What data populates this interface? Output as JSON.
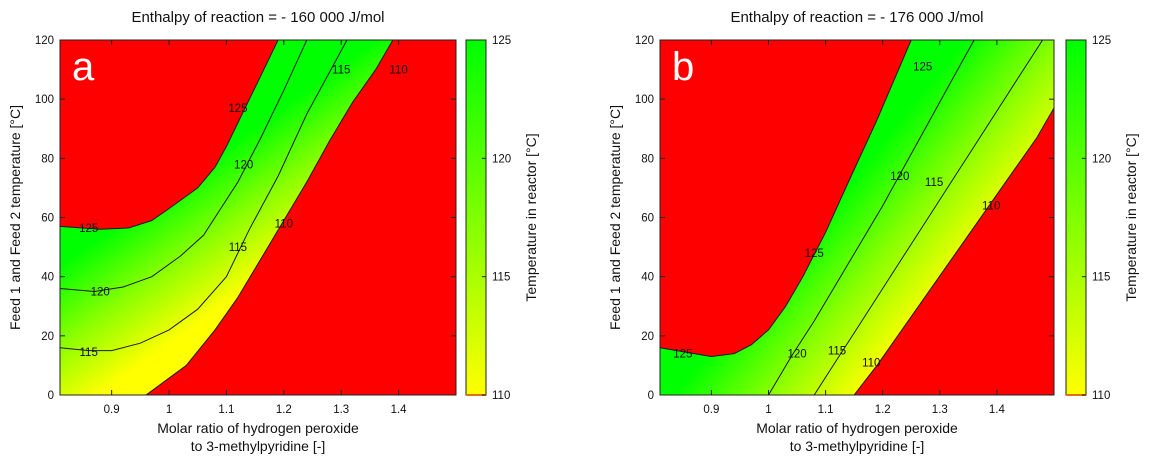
{
  "chart_data": [
    {
      "type": "heatmap",
      "panel_letter": "a",
      "title": "Enthalpy of reaction = - 160 000 J/mol",
      "xlabel_lines": [
        "Molar ratio of hydrogen peroxide",
        "to 3-methylpyridine [-]"
      ],
      "ylabel": "Feed 1 and Feed 2 temperature [°C]",
      "xlim": [
        0.81,
        1.5
      ],
      "ylim": [
        0,
        120
      ],
      "x_ticks": [
        0.9,
        1,
        1.1,
        1.2,
        1.3,
        1.4
      ],
      "x_tick_labels": [
        "0.9",
        "1",
        "1.1",
        "1.2",
        "1.3",
        "1.4"
      ],
      "y_ticks": [
        0,
        20,
        40,
        60,
        80,
        100,
        120
      ],
      "y_tick_labels": [
        "0",
        "20",
        "40",
        "60",
        "80",
        "100",
        "120"
      ],
      "colorbar": {
        "label": "Temperature in reactor [°C]",
        "range": [
          110,
          125
        ],
        "ticks": [
          110,
          115,
          120,
          125
        ],
        "tick_labels": [
          "110",
          "115",
          "120",
          "125"
        ],
        "colors": [
          "#ffff00",
          "#00ff00"
        ],
        "out_of_range_color": "#ff0000"
      },
      "contours": [
        {
          "level": 125,
          "label": "125",
          "points": [
            [
              0.81,
              57
            ],
            [
              0.88,
              56
            ],
            [
              0.93,
              56.5
            ],
            [
              0.97,
              59
            ],
            [
              1.0,
              63
            ],
            [
              1.05,
              70
            ],
            [
              1.08,
              77
            ],
            [
              1.1,
              84
            ],
            [
              1.14,
              100
            ],
            [
              1.19,
              120
            ]
          ],
          "label_points": [
            [
              0.86,
              56.5
            ],
            [
              1.12,
              97
            ]
          ]
        },
        {
          "level": 120,
          "label": "120",
          "points": [
            [
              0.81,
              36
            ],
            [
              0.87,
              35
            ],
            [
              0.92,
              36.5
            ],
            [
              0.97,
              40
            ],
            [
              1.02,
              47
            ],
            [
              1.06,
              54
            ],
            [
              1.09,
              63
            ],
            [
              1.12,
              72
            ],
            [
              1.16,
              87
            ],
            [
              1.2,
              103
            ],
            [
              1.24,
              120
            ]
          ],
          "label_points": [
            [
              0.88,
              35
            ],
            [
              1.13,
              78
            ]
          ]
        },
        {
          "level": 115,
          "label": "115",
          "points": [
            [
              0.81,
              16
            ],
            [
              0.86,
              15
            ],
            [
              0.9,
              15
            ],
            [
              0.95,
              17.5
            ],
            [
              1.0,
              22
            ],
            [
              1.05,
              29
            ],
            [
              1.1,
              40
            ],
            [
              1.14,
              56
            ],
            [
              1.19,
              74
            ],
            [
              1.24,
              95
            ],
            [
              1.31,
              120
            ]
          ],
          "label_points": [
            [
              0.86,
              14.5
            ],
            [
              1.12,
              50
            ],
            [
              1.3,
              110
            ]
          ]
        },
        {
          "level": 110,
          "label": "110",
          "points": [
            [
              0.96,
              0
            ],
            [
              1.03,
              10
            ],
            [
              1.08,
              22
            ],
            [
              1.12,
              33
            ],
            [
              1.16,
              46
            ],
            [
              1.2,
              59
            ],
            [
              1.24,
              72
            ],
            [
              1.28,
              86
            ],
            [
              1.32,
              99
            ],
            [
              1.36,
              110
            ],
            [
              1.39,
              120
            ]
          ],
          "label_points": [
            [
              1.2,
              58
            ],
            [
              1.4,
              110
            ]
          ]
        }
      ],
      "boundaries": {
        "upper": [
          [
            0.81,
            57
          ],
          [
            0.88,
            56
          ],
          [
            0.93,
            56.5
          ],
          [
            0.97,
            59
          ],
          [
            1.0,
            63
          ],
          [
            1.05,
            70
          ],
          [
            1.08,
            77
          ],
          [
            1.1,
            84
          ],
          [
            1.14,
            100
          ],
          [
            1.19,
            120
          ]
        ],
        "lower": [
          [
            0.96,
            0
          ],
          [
            1.03,
            10
          ],
          [
            1.08,
            22
          ],
          [
            1.12,
            33
          ],
          [
            1.16,
            46
          ],
          [
            1.2,
            59
          ],
          [
            1.24,
            72
          ],
          [
            1.28,
            86
          ],
          [
            1.32,
            99
          ],
          [
            1.36,
            110
          ],
          [
            1.39,
            120
          ]
        ]
      }
    },
    {
      "type": "heatmap",
      "panel_letter": "b",
      "title": "Enthalpy of reaction = - 176 000 J/mol",
      "xlabel_lines": [
        "Molar ratio of hydrogen peroxide",
        "to 3-methylpyridine [-]"
      ],
      "ylabel": "Feed 1 and Feed 2 temperature [°C]",
      "xlim": [
        0.81,
        1.5
      ],
      "ylim": [
        0,
        120
      ],
      "x_ticks": [
        0.9,
        1,
        1.1,
        1.2,
        1.3,
        1.4
      ],
      "x_tick_labels": [
        "0.9",
        "1",
        "1.1",
        "1.2",
        "1.3",
        "1.4"
      ],
      "y_ticks": [
        0,
        20,
        40,
        60,
        80,
        100,
        120
      ],
      "y_tick_labels": [
        "0",
        "20",
        "40",
        "60",
        "80",
        "100",
        "120"
      ],
      "colorbar": {
        "label": "Temperature in reactor [°C]",
        "range": [
          110,
          125
        ],
        "ticks": [
          110,
          115,
          120,
          125
        ],
        "tick_labels": [
          "110",
          "115",
          "120",
          "125"
        ],
        "colors": [
          "#ffff00",
          "#00ff00"
        ],
        "out_of_range_color": "#ff0000"
      },
      "contours": [
        {
          "level": 125,
          "label": "125",
          "points": [
            [
              0.81,
              16
            ],
            [
              0.87,
              14
            ],
            [
              0.9,
              13
            ],
            [
              0.94,
              14
            ],
            [
              0.97,
              17
            ],
            [
              1.0,
              22
            ],
            [
              1.03,
              30
            ],
            [
              1.06,
              40
            ],
            [
              1.1,
              55
            ],
            [
              1.14,
              72
            ],
            [
              1.19,
              93
            ],
            [
              1.25,
              120
            ]
          ],
          "label_points": [
            [
              0.85,
              14
            ],
            [
              1.08,
              48
            ],
            [
              1.27,
              111
            ]
          ]
        },
        {
          "level": 120,
          "label": "120",
          "points": [
            [
              1.0,
              0
            ],
            [
              1.04,
              13
            ],
            [
              1.08,
              25
            ],
            [
              1.12,
              38
            ],
            [
              1.16,
              51
            ],
            [
              1.2,
              64
            ],
            [
              1.24,
              78
            ],
            [
              1.28,
              92
            ],
            [
              1.32,
              106
            ],
            [
              1.36,
              120
            ]
          ],
          "label_points": [
            [
              1.05,
              14
            ],
            [
              1.23,
              74
            ]
          ]
        },
        {
          "level": 115,
          "label": "115",
          "points": [
            [
              1.08,
              0
            ],
            [
              1.12,
              12
            ],
            [
              1.16,
              24
            ],
            [
              1.2,
              36
            ],
            [
              1.24,
              48
            ],
            [
              1.28,
              60
            ],
            [
              1.32,
              72
            ],
            [
              1.36,
              84
            ],
            [
              1.4,
              96
            ],
            [
              1.44,
              108
            ],
            [
              1.48,
              120
            ]
          ],
          "label_points": [
            [
              1.12,
              15
            ],
            [
              1.29,
              72
            ]
          ]
        },
        {
          "level": 110,
          "label": "110",
          "points": [
            [
              1.15,
              0
            ],
            [
              1.19,
              10
            ],
            [
              1.23,
              21
            ],
            [
              1.27,
              32
            ],
            [
              1.31,
              43
            ],
            [
              1.35,
              54
            ],
            [
              1.39,
              65
            ],
            [
              1.43,
              76
            ],
            [
              1.47,
              87
            ],
            [
              1.5,
              97
            ]
          ],
          "label_points": [
            [
              1.18,
              11
            ],
            [
              1.39,
              64
            ]
          ]
        }
      ],
      "boundaries": {
        "upper": [
          [
            0.81,
            16
          ],
          [
            0.87,
            14
          ],
          [
            0.9,
            13
          ],
          [
            0.94,
            14
          ],
          [
            0.97,
            17
          ],
          [
            1.0,
            22
          ],
          [
            1.03,
            30
          ],
          [
            1.06,
            40
          ],
          [
            1.1,
            55
          ],
          [
            1.14,
            72
          ],
          [
            1.19,
            93
          ],
          [
            1.25,
            120
          ]
        ],
        "lower": [
          [
            1.15,
            0
          ],
          [
            1.19,
            10
          ],
          [
            1.23,
            21
          ],
          [
            1.27,
            32
          ],
          [
            1.31,
            43
          ],
          [
            1.35,
            54
          ],
          [
            1.39,
            65
          ],
          [
            1.43,
            76
          ],
          [
            1.47,
            87
          ],
          [
            1.5,
            97
          ]
        ]
      }
    }
  ]
}
